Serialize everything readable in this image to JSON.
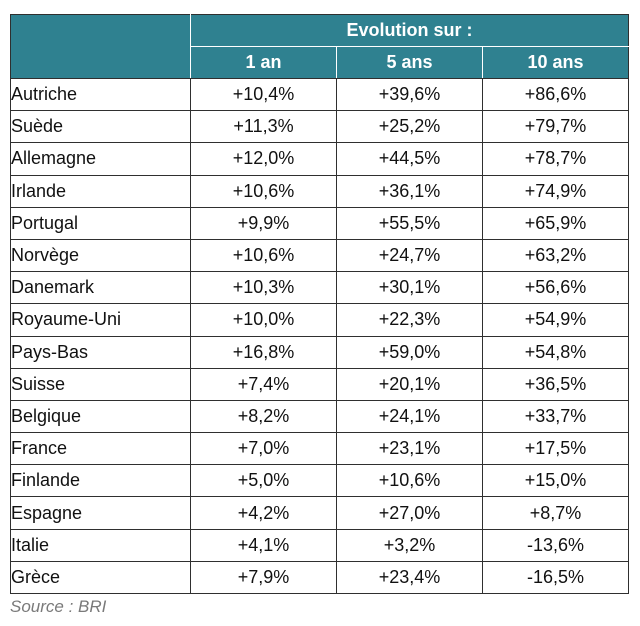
{
  "header": {
    "group_label": "Evolution sur :",
    "columns": [
      "1 an",
      "5 ans",
      "10 ans"
    ]
  },
  "rows": [
    {
      "country": "Autriche",
      "y1": "+10,4%",
      "y5": "+39,6%",
      "y10": "+86,6%"
    },
    {
      "country": "Suède",
      "y1": "+11,3%",
      "y5": "+25,2%",
      "y10": "+79,7%"
    },
    {
      "country": "Allemagne",
      "y1": "+12,0%",
      "y5": "+44,5%",
      "y10": "+78,7%"
    },
    {
      "country": "Irlande",
      "y1": "+10,6%",
      "y5": "+36,1%",
      "y10": "+74,9%"
    },
    {
      "country": "Portugal",
      "y1": "+9,9%",
      "y5": "+55,5%",
      "y10": "+65,9%"
    },
    {
      "country": "Norvège",
      "y1": "+10,6%",
      "y5": "+24,7%",
      "y10": "+63,2%"
    },
    {
      "country": "Danemark",
      "y1": "+10,3%",
      "y5": "+30,1%",
      "y10": "+56,6%"
    },
    {
      "country": "Royaume-Uni",
      "y1": "+10,0%",
      "y5": "+22,3%",
      "y10": "+54,9%"
    },
    {
      "country": "Pays-Bas",
      "y1": "+16,8%",
      "y5": "+59,0%",
      "y10": "+54,8%"
    },
    {
      "country": "Suisse",
      "y1": "+7,4%",
      "y5": "+20,1%",
      "y10": "+36,5%"
    },
    {
      "country": "Belgique",
      "y1": "+8,2%",
      "y5": "+24,1%",
      "y10": "+33,7%"
    },
    {
      "country": "France",
      "y1": "+7,0%",
      "y5": "+23,1%",
      "y10": "+17,5%"
    },
    {
      "country": "Finlande",
      "y1": "+5,0%",
      "y5": "+10,6%",
      "y10": "+15,0%"
    },
    {
      "country": "Espagne",
      "y1": "+4,2%",
      "y5": "+27,0%",
      "y10": "+8,7%"
    },
    {
      "country": "Italie",
      "y1": "+4,1%",
      "y5": "+3,2%",
      "y10": "-13,6%"
    },
    {
      "country": "Grèce",
      "y1": "+7,9%",
      "y5": "+23,4%",
      "y10": "-16,5%"
    }
  ],
  "source": "Source : BRI",
  "colors": {
    "header_bg": "#2f8190",
    "header_text": "#ffffff",
    "source_text": "#7a7a7a"
  }
}
